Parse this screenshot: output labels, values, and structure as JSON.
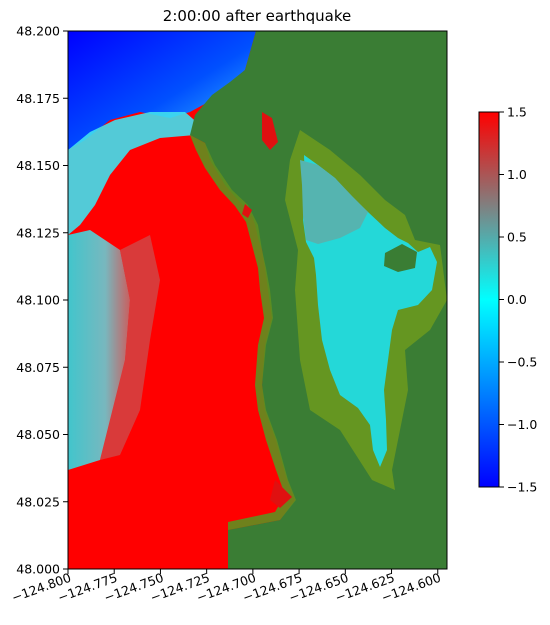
{
  "chart_data": {
    "type": "heatmap",
    "title": "2:00:00 after earthquake",
    "xlabel": "",
    "ylabel": "",
    "xlim": [
      -124.8,
      -124.595
    ],
    "ylim": [
      48.0,
      48.2
    ],
    "x_ticks": [
      -124.8,
      -124.775,
      -124.75,
      -124.725,
      -124.7,
      -124.675,
      -124.65,
      -124.625,
      -124.6
    ],
    "x_tick_labels": [
      "−124.800",
      "−124.775",
      "−124.750",
      "−124.725",
      "−124.700",
      "−124.675",
      "−124.650",
      "−124.625",
      "−124.600"
    ],
    "y_ticks": [
      48.0,
      48.025,
      48.05,
      48.075,
      48.1,
      48.125,
      48.15,
      48.175,
      48.2
    ],
    "y_tick_labels": [
      "48.000",
      "48.025",
      "48.050",
      "48.075",
      "48.100",
      "48.125",
      "48.150",
      "48.175",
      "48.200"
    ],
    "colorbar": {
      "range": [
        -1.5,
        1.5
      ],
      "ticks": [
        -1.5,
        -1.0,
        -0.5,
        0.0,
        0.5,
        1.0,
        1.5
      ],
      "tick_labels": [
        "−1.5",
        "−1.0",
        "−0.5",
        "0.0",
        "0.5",
        "1.0",
        "1.5"
      ],
      "colors": [
        "#0000ff",
        "#00ffff",
        "#808080",
        "#ff0000"
      ]
    },
    "land_color": "#3a7d34",
    "grid": false
  }
}
